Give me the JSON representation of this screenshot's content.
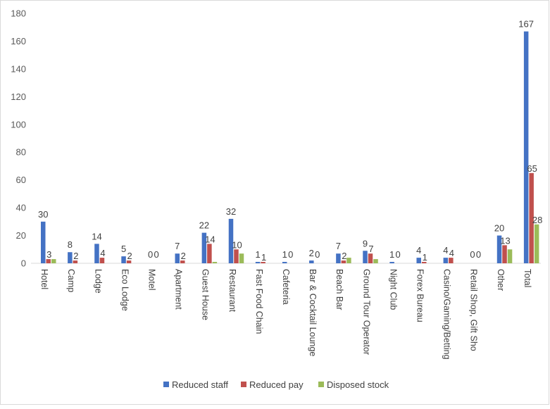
{
  "chart_data": {
    "type": "bar",
    "title": "",
    "xlabel": "",
    "ylabel": "",
    "ylim": [
      0,
      180
    ],
    "yticks": [
      0,
      20,
      40,
      60,
      80,
      100,
      120,
      140,
      160,
      180
    ],
    "grid": false,
    "legend_position": "bottom",
    "categories": [
      "Hotel",
      "Camp",
      "Lodge",
      "Eco Lodge",
      "Motel",
      "Apartment",
      "Guest House",
      "Restaurant",
      "Fast Food Chain",
      "Cafeteria",
      "Bar & Cocktail Lounge",
      "Beach Bar",
      "Ground Tour Operator",
      "Night Club",
      "Forex Bureau",
      "Casino/Gaming/Betting",
      "Retail Shop, Gift Sho",
      "Other",
      "Total"
    ],
    "series": [
      {
        "name": "Reduced staff",
        "color": "#4472c4",
        "values": [
          30,
          8,
          14,
          5,
          0,
          7,
          22,
          32,
          1,
          1,
          2,
          7,
          9,
          1,
          4,
          4,
          0,
          20,
          167
        ],
        "labels": [
          "30",
          "8",
          "14",
          "5",
          "0",
          "7",
          "22",
          "32",
          "1",
          "1",
          "2",
          "7",
          "9",
          "1",
          "4",
          "4",
          "0",
          "20",
          "167"
        ]
      },
      {
        "name": "Reduced pay",
        "color": "#c0504d",
        "values": [
          3,
          2,
          4,
          2,
          0,
          2,
          14,
          10,
          1,
          0,
          0,
          2,
          7,
          0,
          1,
          4,
          0,
          13,
          65
        ],
        "labels": [
          "3",
          "2",
          "4",
          "2",
          "0",
          "2",
          "14",
          "10",
          "1",
          "0",
          "0",
          "2",
          "7",
          "0",
          "1",
          "4",
          "0",
          "13",
          "65"
        ]
      },
      {
        "name": "Disposed stock",
        "color": "#9bbb59",
        "values": [
          3,
          0,
          0,
          0,
          0,
          0,
          1,
          7,
          0,
          0,
          0,
          4,
          3,
          0,
          0,
          0,
          0,
          10,
          28
        ],
        "labels": [
          "",
          "",
          "",
          "",
          "",
          "",
          "",
          "",
          "",
          "",
          "",
          "",
          "",
          "",
          "",
          "",
          "",
          "",
          "28"
        ]
      }
    ]
  }
}
